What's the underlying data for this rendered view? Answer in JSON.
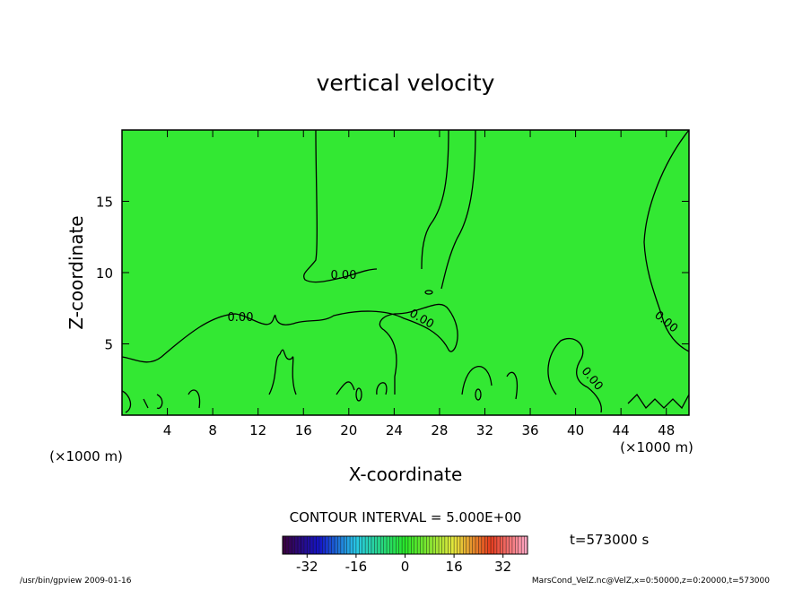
{
  "chart_data": {
    "type": "contour",
    "title": "vertical velocity",
    "x_label": "X-coordinate",
    "y_label": "Z-coordinate",
    "x_unit": "(×1000 m)",
    "y_unit": "(×1000 m)",
    "xlim": [
      0,
      50
    ],
    "xticks": [
      4,
      8,
      12,
      16,
      20,
      24,
      28,
      32,
      36,
      40,
      44,
      48
    ],
    "ylim": [
      0,
      20
    ],
    "yticks": [
      5,
      10,
      15
    ],
    "background_color": "#33e833",
    "contour_labels": [
      "0.00",
      "0.00",
      "0.00",
      "0.00",
      "0.00"
    ],
    "contour_interval_text": "CONTOUR INTERVAL = 5.000E+00",
    "time_text": "t=573000 s",
    "colorbar": {
      "lim": [
        -40,
        40
      ],
      "ticks": [
        -32,
        -16,
        0,
        16,
        32
      ]
    },
    "footer_left": "/usr/bin/gpview  2009-01-16",
    "footer_right": "MarsCond_VelZ.nc@VelZ,x=0:50000,z=0:20000,t=573000"
  }
}
